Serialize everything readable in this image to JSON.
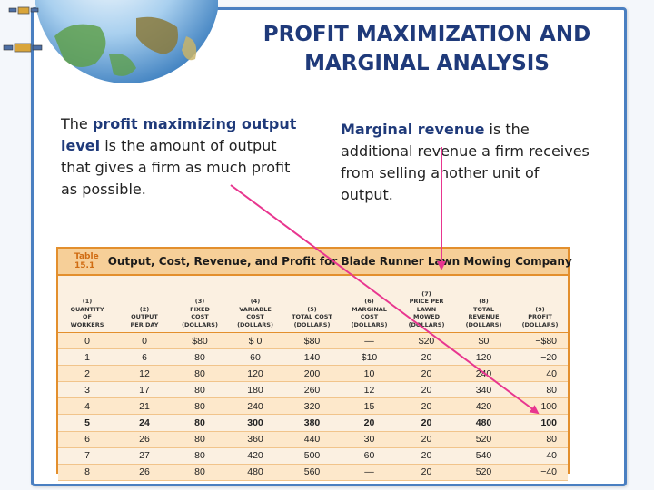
{
  "slide": {
    "title_line1": "PROFIT MAXIMIZATION AND",
    "title_line2": "MARGINAL ANALYSIS"
  },
  "left_text": {
    "prefix": "The ",
    "keyword": "profit maximizing output level",
    "suffix": " is the amount of output that gives a firm as much profit as possible."
  },
  "right_text": {
    "keyword": "Marginal revenue",
    "suffix": " is the additional revenue a firm receives from selling another unit of output."
  },
  "table": {
    "number": "Table 15.1",
    "title": "Output, Cost, Revenue, and Profit for Blade Runner Lawn Mowing Company",
    "headers": [
      [
        "(1)",
        "QUANTITY",
        "OF",
        "WORKERS"
      ],
      [
        "(2)",
        "OUTPUT",
        "PER DAY"
      ],
      [
        "(3)",
        "FIXED",
        "COST",
        "(DOLLARS)"
      ],
      [
        "(4)",
        "VARIABLE",
        "COST",
        "(DOLLARS)"
      ],
      [
        "(5)",
        "TOTAL COST",
        "(DOLLARS)"
      ],
      [
        "(6)",
        "MARGINAL",
        "COST",
        "(DOLLARS)"
      ],
      [
        "(7)",
        "PRICE PER",
        "LAWN",
        "MOWED",
        "(DOLLARS)"
      ],
      [
        "(8)",
        "TOTAL",
        "REVENUE",
        "(DOLLARS)"
      ],
      [
        "(9)",
        "PROFIT",
        "(DOLLARS)"
      ]
    ],
    "rows": [
      [
        "0",
        "0",
        "$80",
        "$ 0",
        "$80",
        "—",
        "$20",
        "$0",
        "−$80"
      ],
      [
        "1",
        "6",
        "80",
        "60",
        "140",
        "$10",
        "20",
        "120",
        "−20"
      ],
      [
        "2",
        "12",
        "80",
        "120",
        "200",
        "10",
        "20",
        "240",
        "40"
      ],
      [
        "3",
        "17",
        "80",
        "180",
        "260",
        "12",
        "20",
        "340",
        "80"
      ],
      [
        "4",
        "21",
        "80",
        "240",
        "320",
        "15",
        "20",
        "420",
        "100"
      ],
      [
        "5",
        "24",
        "80",
        "300",
        "380",
        "20",
        "20",
        "480",
        "100"
      ],
      [
        "6",
        "26",
        "80",
        "360",
        "440",
        "30",
        "20",
        "520",
        "80"
      ],
      [
        "7",
        "27",
        "80",
        "420",
        "500",
        "60",
        "20",
        "540",
        "40"
      ],
      [
        "8",
        "26",
        "80",
        "480",
        "560",
        "—",
        "20",
        "520",
        "−40"
      ]
    ],
    "bold_row": 5
  },
  "colors": {
    "title": "#1f3a7a",
    "frame": "#4a7fc1",
    "table_border": "#e38f2d",
    "table_header": "#f6cf98",
    "arrow": "#e8368f"
  },
  "icons": [
    "globe-icon",
    "satellite-icon"
  ]
}
